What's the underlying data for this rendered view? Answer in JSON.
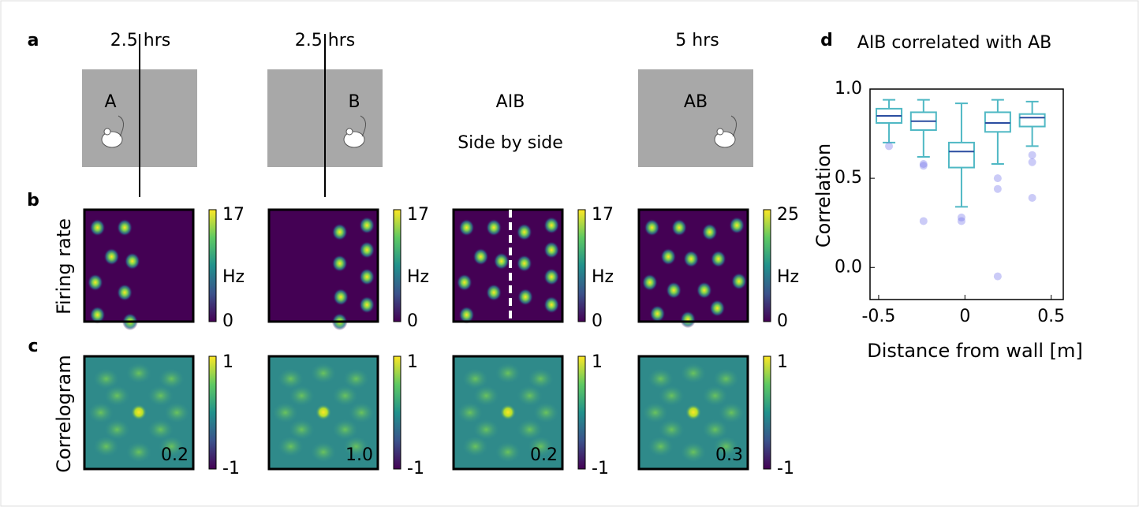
{
  "panel_labels": [
    "a",
    "b",
    "c",
    "d"
  ],
  "row_labels": [
    "Firing rate",
    "Correlogram"
  ],
  "columns": [
    {
      "duration": "2.5 hrs",
      "arena_label": "A",
      "rate_max": 17,
      "rate_min": 0,
      "rate_unit": "Hz",
      "corr_max": 1,
      "corr_min": -1,
      "score": "0.2"
    },
    {
      "duration": "2.5 hrs",
      "arena_label": "B",
      "rate_max": 17,
      "rate_min": 0,
      "rate_unit": "Hz",
      "corr_max": 1,
      "corr_min": -1,
      "score": "1.0"
    },
    {
      "arena_label": "AIB",
      "arena_note": "Side by side",
      "rate_max": 17,
      "rate_min": 0,
      "rate_unit": "Hz",
      "corr_max": 1,
      "corr_min": -1,
      "score": "0.2"
    },
    {
      "duration": "5 hrs",
      "arena_label": "AB",
      "rate_max": 25,
      "rate_min": 0,
      "rate_unit": "Hz",
      "corr_max": 1,
      "corr_min": -1,
      "score": "0.3"
    }
  ],
  "chart_data": {
    "type": "box",
    "title": "AIB correlated with AB",
    "ylabel": "Correlation",
    "xlabel": "Distance from wall [m]",
    "x": [
      -0.44,
      -0.24,
      -0.02,
      0.19,
      0.39
    ],
    "whisker_high": [
      0.94,
      0.94,
      0.92,
      0.94,
      0.93
    ],
    "q3": [
      0.89,
      0.87,
      0.7,
      0.87,
      0.86
    ],
    "median": [
      0.85,
      0.82,
      0.65,
      0.81,
      0.84
    ],
    "q1": [
      0.81,
      0.77,
      0.56,
      0.76,
      0.79
    ],
    "whisker_low": [
      0.7,
      0.62,
      0.34,
      0.58,
      0.68
    ],
    "outliers": [
      [
        0.68
      ],
      [
        0.58,
        0.57,
        0.26
      ],
      [
        0.28,
        0.26
      ],
      [
        0.5,
        0.44,
        -0.05
      ],
      [
        0.63,
        0.59,
        0.39
      ]
    ],
    "color": "#4fb8c4",
    "median_color": "#2b4da0",
    "outlier_color": "#6a6ae8",
    "xlim": [
      -0.55,
      0.57
    ],
    "ylim": [
      -0.18,
      1.0
    ],
    "xticks": [
      -0.5,
      0,
      0.5
    ],
    "yticks": [
      {
        "value": 0,
        "label": "0.0"
      },
      0.5,
      {
        "value": 1,
        "label": "1.0"
      }
    ]
  }
}
